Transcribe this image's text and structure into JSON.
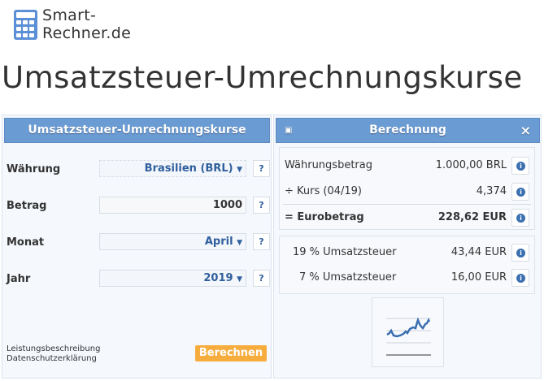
{
  "logo": {
    "line1": "Smart-",
    "line2": "Rechner.de"
  },
  "page_title": "Umsatzsteuer-Umrechnungskurse",
  "form": {
    "title": "Umsatzsteuer-Umrechnungskurse",
    "fields": [
      {
        "label": "Währung",
        "value": "Brasilien (BRL)",
        "type": "select"
      },
      {
        "label": "Betrag",
        "value": "1000",
        "type": "input"
      },
      {
        "label": "Monat",
        "value": "April",
        "type": "select"
      },
      {
        "label": "Jahr",
        "value": "2019",
        "type": "select"
      }
    ],
    "help": "?",
    "links": [
      "Leistungsbeschreibung",
      "Datenschutzerklärung"
    ],
    "submit": "Berechnen"
  },
  "result": {
    "title": "Berechnung",
    "close": "×",
    "rows": [
      {
        "label": "Währungsbetrag",
        "value": "1.000,00 BRL"
      },
      {
        "label": "÷ Kurs (04/19)",
        "value": "4,374"
      },
      {
        "label": "= Eurobetrag",
        "value": "228,62 EUR"
      }
    ],
    "tax_rows": [
      {
        "label": "19 % Umsatzsteuer",
        "value": "43,44 EUR"
      },
      {
        "label": "7 % Umsatzsteuer",
        "value": "16,00 EUR"
      }
    ],
    "info_icon": "i"
  },
  "colors": {
    "header": "#6b9bd3",
    "button": "#f7ad3e",
    "link": "#2f5f9e"
  }
}
